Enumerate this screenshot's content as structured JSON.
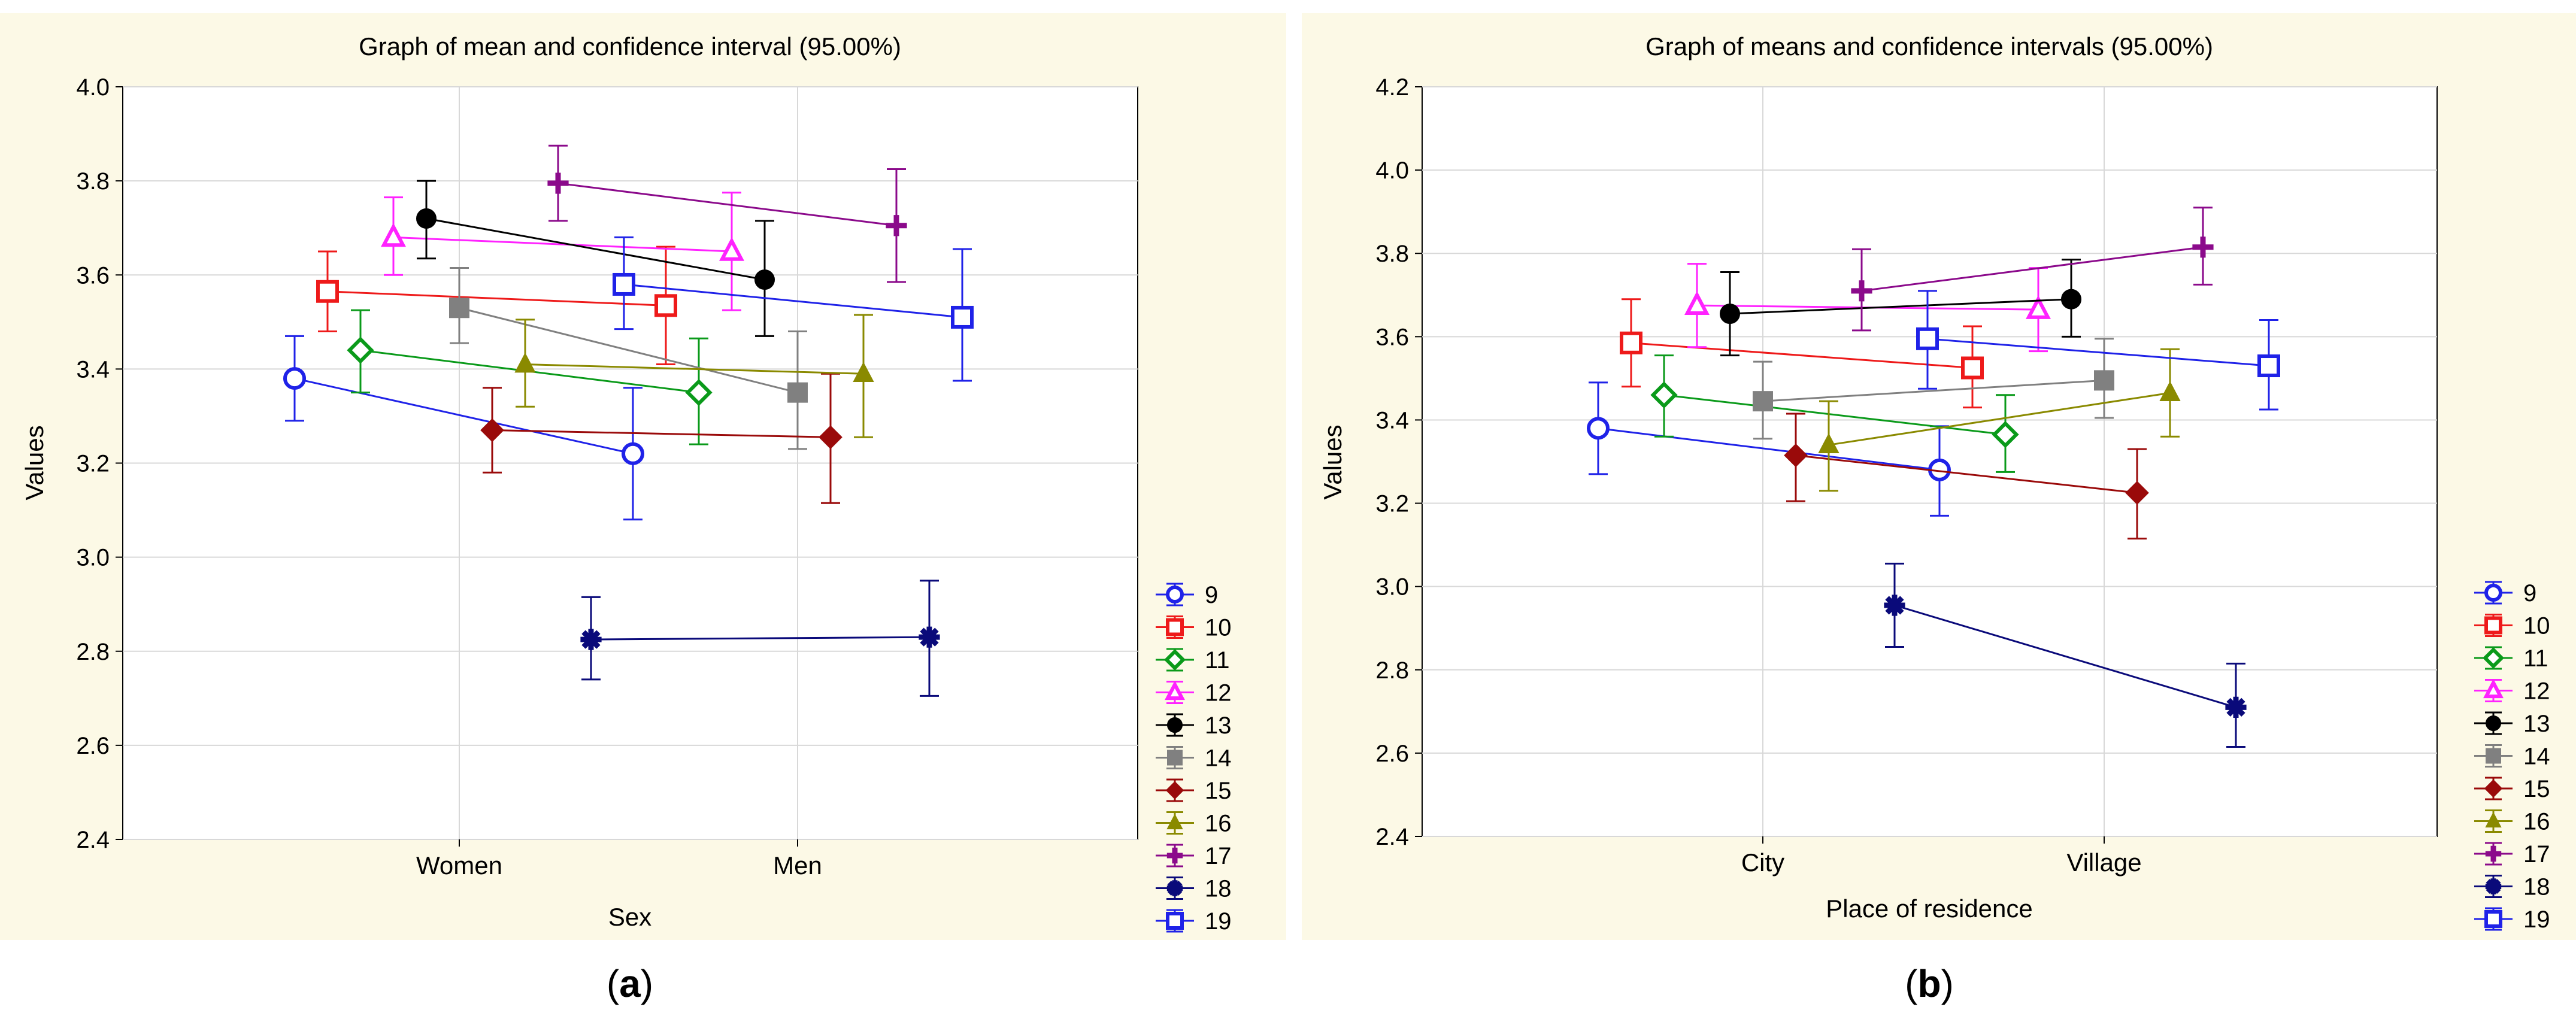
{
  "series_styles": [
    {
      "name": "9",
      "color": "#1f22e8",
      "marker": "circle-open"
    },
    {
      "name": "10",
      "color": "#ee1a1a",
      "marker": "square-open"
    },
    {
      "name": "11",
      "color": "#0a9a1a",
      "marker": "diamond-open"
    },
    {
      "name": "12",
      "color": "#ff22ff",
      "marker": "triangle-open"
    },
    {
      "name": "13",
      "color": "#000000",
      "marker": "circle-filled"
    },
    {
      "name": "14",
      "color": "#808080",
      "marker": "square-filled"
    },
    {
      "name": "15",
      "color": "#9a0a0a",
      "marker": "diamond-filled"
    },
    {
      "name": "16",
      "color": "#8a8a00",
      "marker": "triangle-filled"
    },
    {
      "name": "17",
      "color": "#8b0a8b",
      "marker": "plus"
    },
    {
      "name": "18",
      "color": "#0a0a7a",
      "marker": "star"
    },
    {
      "name": "19",
      "color": "#1f22e8",
      "marker": "square-open"
    }
  ],
  "chart_data": [
    {
      "panel_label": "a",
      "type": "line",
      "title": "Graph of mean and confidence interval (95.00%)",
      "xlabel": "Sex",
      "ylabel": "Values",
      "categories": [
        "Women",
        "Men"
      ],
      "ylim": [
        2.4,
        4.0
      ],
      "yticks": [
        2.4,
        2.6,
        2.8,
        3.0,
        3.2,
        3.4,
        3.6,
        3.8,
        4.0
      ],
      "series": [
        {
          "name": "9",
          "values": [
            3.38,
            3.22
          ],
          "ci": [
            [
              3.29,
              3.47
            ],
            [
              3.08,
              3.36
            ]
          ]
        },
        {
          "name": "10",
          "values": [
            3.565,
            3.535
          ],
          "ci": [
            [
              3.48,
              3.65
            ],
            [
              3.41,
              3.66
            ]
          ]
        },
        {
          "name": "11",
          "values": [
            3.44,
            3.35
          ],
          "ci": [
            [
              3.35,
              3.525
            ],
            [
              3.24,
              3.465
            ]
          ]
        },
        {
          "name": "12",
          "values": [
            3.68,
            3.65
          ],
          "ci": [
            [
              3.6,
              3.765
            ],
            [
              3.525,
              3.775
            ]
          ]
        },
        {
          "name": "13",
          "values": [
            3.72,
            3.59
          ],
          "ci": [
            [
              3.635,
              3.8
            ],
            [
              3.47,
              3.715
            ]
          ]
        },
        {
          "name": "14",
          "values": [
            3.53,
            3.35
          ],
          "ci": [
            [
              3.455,
              3.615
            ],
            [
              3.23,
              3.48
            ]
          ]
        },
        {
          "name": "15",
          "values": [
            3.27,
            3.255
          ],
          "ci": [
            [
              3.18,
              3.36
            ],
            [
              3.115,
              3.39
            ]
          ]
        },
        {
          "name": "16",
          "values": [
            3.41,
            3.39
          ],
          "ci": [
            [
              3.32,
              3.505
            ],
            [
              3.255,
              3.515
            ]
          ]
        },
        {
          "name": "17",
          "values": [
            3.795,
            3.705
          ],
          "ci": [
            [
              3.715,
              3.875
            ],
            [
              3.585,
              3.825
            ]
          ]
        },
        {
          "name": "18",
          "values": [
            2.825,
            2.83
          ],
          "ci": [
            [
              2.74,
              2.915
            ],
            [
              2.705,
              2.95
            ]
          ]
        },
        {
          "name": "19",
          "values": [
            3.58,
            3.51
          ],
          "ci": [
            [
              3.485,
              3.68
            ],
            [
              3.375,
              3.655
            ]
          ]
        }
      ]
    },
    {
      "panel_label": "b",
      "type": "line",
      "title": "Graph of means and confidence intervals (95.00%)",
      "xlabel": "Place of residence",
      "ylabel": "Values",
      "categories": [
        "City",
        "Village"
      ],
      "ylim": [
        2.4,
        4.2
      ],
      "yticks": [
        2.4,
        2.6,
        2.8,
        3.0,
        3.2,
        3.4,
        3.6,
        3.8,
        4.0,
        4.2
      ],
      "series": [
        {
          "name": "9",
          "values": [
            3.38,
            3.28
          ],
          "ci": [
            [
              3.27,
              3.49
            ],
            [
              3.17,
              3.385
            ]
          ]
        },
        {
          "name": "10",
          "values": [
            3.585,
            3.525
          ],
          "ci": [
            [
              3.48,
              3.69
            ],
            [
              3.43,
              3.625
            ]
          ]
        },
        {
          "name": "11",
          "values": [
            3.46,
            3.365
          ],
          "ci": [
            [
              3.36,
              3.555
            ],
            [
              3.275,
              3.46
            ]
          ]
        },
        {
          "name": "12",
          "values": [
            3.675,
            3.665
          ],
          "ci": [
            [
              3.575,
              3.775
            ],
            [
              3.565,
              3.765
            ]
          ]
        },
        {
          "name": "13",
          "values": [
            3.655,
            3.69
          ],
          "ci": [
            [
              3.555,
              3.755
            ],
            [
              3.6,
              3.785
            ]
          ]
        },
        {
          "name": "14",
          "values": [
            3.445,
            3.495
          ],
          "ci": [
            [
              3.355,
              3.54
            ],
            [
              3.405,
              3.595
            ]
          ]
        },
        {
          "name": "15",
          "values": [
            3.315,
            3.225
          ],
          "ci": [
            [
              3.205,
              3.415
            ],
            [
              3.115,
              3.33
            ]
          ]
        },
        {
          "name": "16",
          "values": [
            3.34,
            3.465
          ],
          "ci": [
            [
              3.23,
              3.445
            ],
            [
              3.36,
              3.57
            ]
          ]
        },
        {
          "name": "17",
          "values": [
            3.71,
            3.815
          ],
          "ci": [
            [
              3.615,
              3.81
            ],
            [
              3.725,
              3.91
            ]
          ]
        },
        {
          "name": "18",
          "values": [
            2.955,
            2.71
          ],
          "ci": [
            [
              2.855,
              3.055
            ],
            [
              2.615,
              2.815
            ]
          ]
        },
        {
          "name": "19",
          "values": [
            3.595,
            3.53
          ],
          "ci": [
            [
              3.475,
              3.71
            ],
            [
              3.425,
              3.64
            ]
          ]
        }
      ]
    }
  ]
}
